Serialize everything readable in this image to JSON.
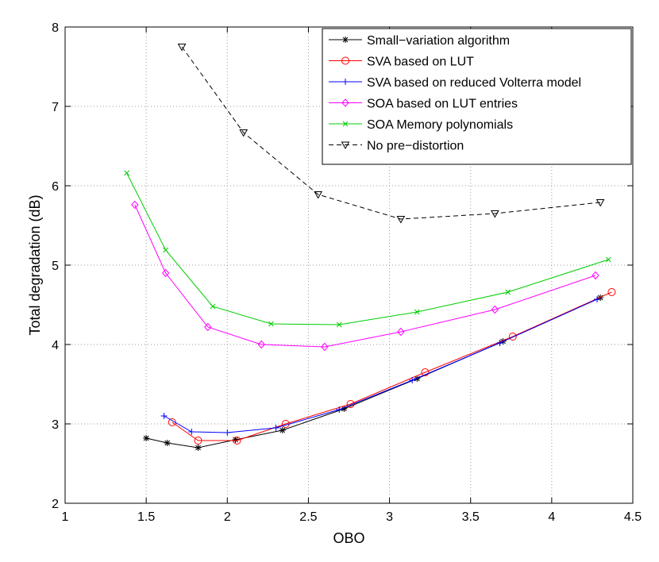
{
  "chart_data": {
    "type": "line",
    "xlabel": "OBO",
    "ylabel": "Total degradation (dB)",
    "xlim": [
      1,
      4.5
    ],
    "ylim": [
      2,
      8
    ],
    "xticks": [
      "1",
      "1.5",
      "2",
      "2.5",
      "3",
      "3.5",
      "4",
      "4.5"
    ],
    "yticks": [
      "2",
      "3",
      "4",
      "5",
      "6",
      "7",
      "8"
    ],
    "grid": true,
    "legend_position": "top-right",
    "series": [
      {
        "name": "Small−variation algorithm",
        "color": "#000000",
        "marker": "asterisk",
        "dash": false,
        "x": [
          1.5,
          1.63,
          1.82,
          2.05,
          2.34,
          2.72,
          3.17,
          3.7,
          4.3
        ],
        "y": [
          2.82,
          2.76,
          2.7,
          2.8,
          2.92,
          3.19,
          3.57,
          4.04,
          4.59
        ]
      },
      {
        "name": "SVA based on LUT",
        "color": "#ff0000",
        "marker": "circle",
        "dash": false,
        "x": [
          1.66,
          1.82,
          2.06,
          2.36,
          2.76,
          3.22,
          3.76,
          4.37
        ],
        "y": [
          3.02,
          2.79,
          2.79,
          3.0,
          3.25,
          3.65,
          4.1,
          4.66
        ]
      },
      {
        "name": "SVA based on reduced Volterra model",
        "color": "#0000ff",
        "marker": "plus",
        "dash": false,
        "x": [
          1.61,
          1.78,
          2.0,
          2.3,
          2.69,
          3.14,
          3.68,
          4.28
        ],
        "y": [
          3.1,
          2.9,
          2.89,
          2.95,
          3.18,
          3.55,
          4.02,
          4.57
        ]
      },
      {
        "name": "SOA based on LUT entries",
        "color": "#ff00ff",
        "marker": "diamond",
        "dash": false,
        "x": [
          1.43,
          1.62,
          1.88,
          2.21,
          2.6,
          3.07,
          3.65,
          4.27
        ],
        "y": [
          5.76,
          4.9,
          4.22,
          4.0,
          3.97,
          4.16,
          4.44,
          4.87
        ]
      },
      {
        "name": "SOA Memory polynomials",
        "color": "#00cc00",
        "marker": "x",
        "dash": false,
        "x": [
          1.38,
          1.62,
          1.91,
          2.27,
          2.69,
          3.17,
          3.73,
          4.35
        ],
        "y": [
          6.16,
          5.19,
          4.48,
          4.26,
          4.25,
          4.41,
          4.66,
          5.07
        ]
      },
      {
        "name": "No pre−distortion",
        "color": "#000000",
        "marker": "triangle-down",
        "dash": true,
        "x": [
          1.72,
          2.1,
          2.56,
          3.07,
          3.65,
          4.3
        ],
        "y": [
          7.75,
          6.67,
          5.89,
          5.58,
          5.65,
          5.79
        ]
      }
    ]
  }
}
